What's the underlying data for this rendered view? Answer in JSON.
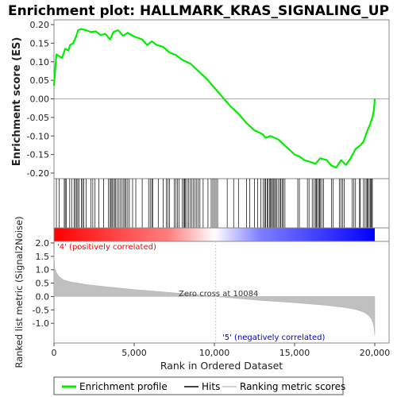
{
  "chart_data": {
    "type": "line",
    "title": "Enrichment plot: HALLMARK_KRAS_SIGNALING_UP",
    "ylabel_es": "Enrichment score (ES)",
    "ylabel_metric": "Ranked list metric (Signal2Noise)",
    "xlabel": "Rank in Ordered Dataset",
    "xlim": [
      0,
      20000
    ],
    "x_ticks": [
      0,
      5000,
      10000,
      15000,
      20000
    ],
    "x_tick_labels": [
      "0",
      "5,000",
      "10,000",
      "15,000",
      "20,000"
    ],
    "es_ylim": [
      -0.2,
      0.2
    ],
    "es_ticks": [
      0.2,
      0.15,
      0.1,
      0.05,
      0.0,
      -0.05,
      -0.1,
      -0.15,
      -0.2
    ],
    "es_tick_labels": [
      "0.20",
      "0.15",
      "0.10",
      "0.05",
      "0.00",
      "-0.05",
      "-0.10",
      "-0.15",
      "-0.20"
    ],
    "metric_ylim": [
      -1.5,
      2.0
    ],
    "metric_ticks": [
      2.0,
      1.5,
      1.0,
      0.5,
      0.0,
      -0.5,
      -1.0
    ],
    "metric_tick_labels": [
      "2.0",
      "1.5",
      "1.0",
      "0.5",
      "0.0",
      "-0.5",
      "-1.0"
    ],
    "series": [
      {
        "name": "Enrichment profile",
        "color": "#00ee00",
        "x": [
          0,
          150,
          300,
          500,
          700,
          900,
          1000,
          1200,
          1400,
          1500,
          1700,
          2000,
          2300,
          2600,
          2900,
          3200,
          3500,
          3700,
          4000,
          4300,
          4600,
          5000,
          5500,
          5800,
          6100,
          6400,
          6800,
          7200,
          7600,
          8000,
          8500,
          9000,
          9500,
          10000,
          10500,
          11000,
          11500,
          12000,
          12500,
          13000,
          13200,
          13500,
          14000,
          14500,
          15000,
          15300,
          15600,
          16000,
          16300,
          16600,
          17000,
          17300,
          17600,
          17900,
          18200,
          18500,
          18800,
          19100,
          19300,
          19500,
          19700,
          19850,
          19950,
          20000
        ],
        "y": [
          0.035,
          0.12,
          0.115,
          0.11,
          0.135,
          0.13,
          0.145,
          0.15,
          0.17,
          0.185,
          0.188,
          0.185,
          0.18,
          0.182,
          0.172,
          0.175,
          0.16,
          0.18,
          0.185,
          0.17,
          0.178,
          0.168,
          0.16,
          0.145,
          0.155,
          0.145,
          0.14,
          0.125,
          0.118,
          0.105,
          0.095,
          0.075,
          0.055,
          0.03,
          0.005,
          -0.02,
          -0.04,
          -0.065,
          -0.085,
          -0.095,
          -0.105,
          -0.1,
          -0.11,
          -0.13,
          -0.15,
          -0.155,
          -0.165,
          -0.17,
          -0.175,
          -0.16,
          -0.165,
          -0.18,
          -0.185,
          -0.165,
          -0.178,
          -0.16,
          -0.135,
          -0.125,
          -0.115,
          -0.09,
          -0.07,
          -0.05,
          -0.03,
          0.0
        ]
      },
      {
        "name": "Hits",
        "color": "#000000"
      },
      {
        "name": "Ranking metric scores",
        "color": "#c0c0c0"
      }
    ],
    "hits": [
      150,
      320,
      640,
      700,
      760,
      980,
      1100,
      1250,
      1330,
      1400,
      1480,
      1560,
      1700,
      1780,
      1850,
      2000,
      2300,
      2420,
      2560,
      2800,
      3100,
      3400,
      3500,
      3560,
      3620,
      3700,
      3780,
      3850,
      3950,
      4050,
      4150,
      4250,
      4350,
      4420,
      4500,
      4600,
      4700,
      4900,
      5100,
      5500,
      5900,
      6000,
      6100,
      6150,
      6500,
      6800,
      7000,
      7100,
      7200,
      7500,
      7600,
      7700,
      7800,
      8000,
      8100,
      8150,
      8200,
      8300,
      8400,
      8500,
      8600,
      8700,
      8800,
      8900,
      9000,
      9100,
      9300,
      9600,
      9800,
      9900,
      10000,
      10100,
      10200,
      10800,
      11200,
      11500,
      12000,
      12200,
      12500,
      12700,
      12900,
      13050,
      13150,
      13200,
      13300,
      13350,
      13450,
      13500,
      13560,
      13620,
      13700,
      13760,
      13820,
      13900,
      14000,
      14100,
      14150,
      14250,
      14300,
      14400,
      15200,
      15300,
      15800,
      15900,
      16100,
      16200,
      16300,
      16350,
      16400,
      16500,
      16550,
      16600,
      16700,
      16800,
      17300,
      17400,
      17800,
      17900,
      18000,
      18100,
      18600,
      18700,
      18800,
      19050,
      19100,
      19300,
      19400,
      19500,
      19550,
      19600,
      19700,
      19750,
      19800,
      19850
    ],
    "metric_curve": {
      "x": [
        0,
        50,
        150,
        300,
        600,
        1000,
        2000,
        3000,
        4000,
        5000,
        6000,
        7000,
        8000,
        9000,
        10084,
        11000,
        12000,
        13000,
        14000,
        15000,
        16000,
        17000,
        18000,
        18800,
        19300,
        19600,
        19800,
        19900,
        19950,
        20000
      ],
      "y": [
        1.6,
        1.05,
        0.9,
        0.75,
        0.62,
        0.55,
        0.45,
        0.38,
        0.32,
        0.26,
        0.21,
        0.16,
        0.11,
        0.06,
        0.0,
        -0.05,
        -0.1,
        -0.15,
        -0.19,
        -0.23,
        -0.28,
        -0.33,
        -0.4,
        -0.48,
        -0.58,
        -0.7,
        -0.85,
        -1.0,
        -1.15,
        -1.45
      ]
    },
    "annotations": {
      "positive_label": "'4' (positively correlated)",
      "negative_label": "'5' (negatively correlated)",
      "zero_cross": "Zero cross at 10084",
      "zero_cross_rank": 10084
    },
    "colors": {
      "positive": "#ff0000",
      "negative": "#0000ff",
      "profile": "#00ee00",
      "metric_fill": "#c0c0c0",
      "zero_line": "#cccccc"
    },
    "legend": {
      "placement": "bottom",
      "items": [
        "Enrichment profile",
        "Hits",
        "Ranking metric scores"
      ]
    }
  }
}
